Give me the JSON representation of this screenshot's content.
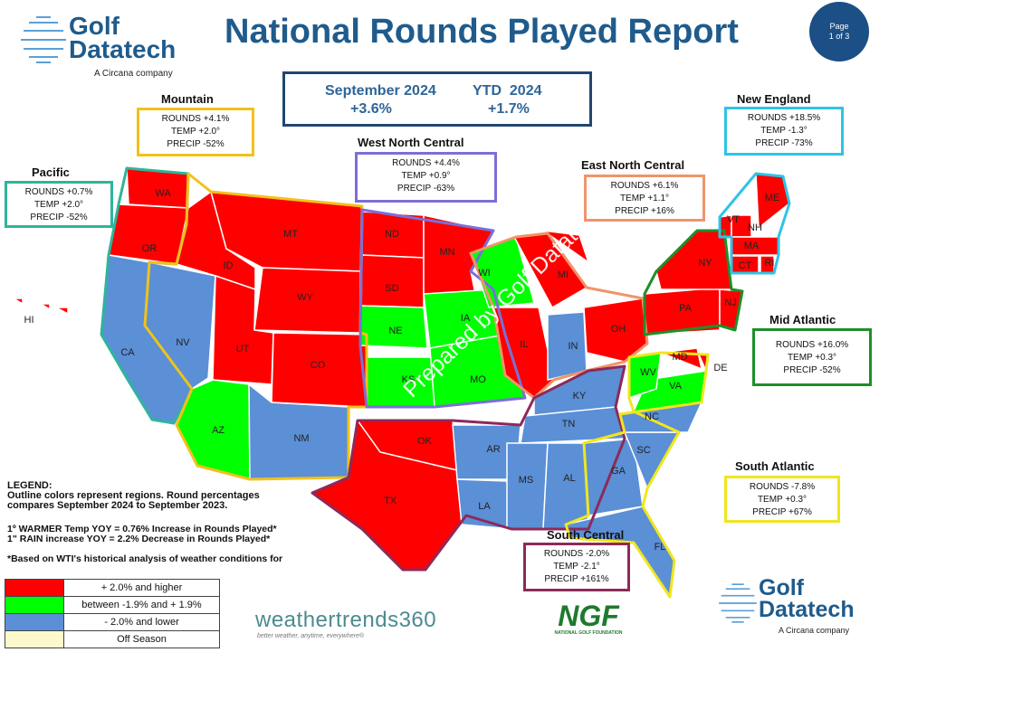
{
  "header": {
    "title": "National Rounds Played Report",
    "page_badge": {
      "line1": "Page",
      "line2": "1 of 3"
    }
  },
  "logo": {
    "line1": "Golf",
    "line2": "Datatech",
    "tagline": "A Circana company"
  },
  "summary": {
    "month_label": "September 2024",
    "month_value": "+3.6%",
    "ytd_label": "YTD  2024",
    "ytd_value": "+1.7%"
  },
  "regions": {
    "mountain": {
      "name": "Mountain",
      "rounds": "ROUNDS +4.1%",
      "temp": "TEMP +2.0°",
      "precip": "PRECIP -52%",
      "color": "#f2c11b"
    },
    "pacific": {
      "name": "Pacific",
      "rounds": "ROUNDS +0.7%",
      "temp": "TEMP +2.0°",
      "precip": "PRECIP -52%",
      "color": "#2eb59a"
    },
    "west_north_central": {
      "name": "West North Central",
      "rounds": "ROUNDS +4.4%",
      "temp": "TEMP +0.9°",
      "precip": "PRECIP -63%",
      "color": "#7b6fd8"
    },
    "east_north_central": {
      "name": "East North Central",
      "rounds": "ROUNDS +6.1%",
      "temp": "TEMP +1.1°",
      "precip": "PRECIP +16%",
      "color": "#f0946a"
    },
    "new_england": {
      "name": "New England",
      "rounds": "ROUNDS +18.5%",
      "temp": "TEMP -1.3°",
      "precip": "PRECIP -73%",
      "color": "#2ec4e6"
    },
    "mid_atlantic": {
      "name": "Mid Atlantic",
      "rounds": "ROUNDS +16.0%",
      "temp": "TEMP +0.3°",
      "precip": "PRECIP -52%",
      "color": "#1e8f2a"
    },
    "south_atlantic": {
      "name": "South Atlantic",
      "rounds": "ROUNDS -7.8%",
      "temp": "TEMP +0.3°",
      "precip": "PRECIP +67%",
      "color": "#f0e61e"
    },
    "south_central": {
      "name": "South Central",
      "rounds": "ROUNDS -2.0%",
      "temp": "TEMP -2.1°",
      "precip": "PRECIP +161%",
      "color": "#8c2a5a"
    }
  },
  "map": {
    "colors": {
      "up": "#ff0000",
      "flat": "#00ff00",
      "down": "#5b8fd6",
      "off": "#fdf9cc"
    },
    "states": [
      {
        "abbr": "WA",
        "status": "up"
      },
      {
        "abbr": "OR",
        "status": "up"
      },
      {
        "abbr": "CA",
        "status": "down"
      },
      {
        "abbr": "NV",
        "status": "down"
      },
      {
        "abbr": "ID",
        "status": "up"
      },
      {
        "abbr": "MT",
        "status": "up"
      },
      {
        "abbr": "WY",
        "status": "up"
      },
      {
        "abbr": "UT",
        "status": "up"
      },
      {
        "abbr": "CO",
        "status": "up"
      },
      {
        "abbr": "AZ",
        "status": "flat"
      },
      {
        "abbr": "NM",
        "status": "down"
      },
      {
        "abbr": "ND",
        "status": "up"
      },
      {
        "abbr": "SD",
        "status": "up"
      },
      {
        "abbr": "NE",
        "status": "flat"
      },
      {
        "abbr": "KS",
        "status": "flat"
      },
      {
        "abbr": "MN",
        "status": "up"
      },
      {
        "abbr": "IA",
        "status": "flat"
      },
      {
        "abbr": "MO",
        "status": "flat"
      },
      {
        "abbr": "WI",
        "status": "flat"
      },
      {
        "abbr": "IL",
        "status": "up"
      },
      {
        "abbr": "MI",
        "status": "up"
      },
      {
        "abbr": "IN",
        "status": "down"
      },
      {
        "abbr": "OH",
        "status": "up"
      },
      {
        "abbr": "KY",
        "status": "down"
      },
      {
        "abbr": "TN",
        "status": "down"
      },
      {
        "abbr": "OK",
        "status": "up"
      },
      {
        "abbr": "TX",
        "status": "up"
      },
      {
        "abbr": "AR",
        "status": "down"
      },
      {
        "abbr": "LA",
        "status": "down"
      },
      {
        "abbr": "MS",
        "status": "down"
      },
      {
        "abbr": "AL",
        "status": "down"
      },
      {
        "abbr": "GA",
        "status": "down"
      },
      {
        "abbr": "FL",
        "status": "down"
      },
      {
        "abbr": "SC",
        "status": "down"
      },
      {
        "abbr": "NC",
        "status": "down"
      },
      {
        "abbr": "VA",
        "status": "flat"
      },
      {
        "abbr": "WV",
        "status": "flat"
      },
      {
        "abbr": "MD",
        "status": "up"
      },
      {
        "abbr": "DE",
        "status": "up"
      },
      {
        "abbr": "PA",
        "status": "up"
      },
      {
        "abbr": "NJ",
        "status": "up"
      },
      {
        "abbr": "NY",
        "status": "up"
      },
      {
        "abbr": "VT",
        "status": "up"
      },
      {
        "abbr": "NH",
        "status": "up"
      },
      {
        "abbr": "ME",
        "status": "up"
      },
      {
        "abbr": "MA",
        "status": "up"
      },
      {
        "abbr": "CT",
        "status": "up"
      },
      {
        "abbr": "RI",
        "status": "up"
      },
      {
        "abbr": "HI",
        "status": "up"
      }
    ]
  },
  "legend": {
    "title": "LEGEND:",
    "line1": "Outline colors represent regions. Round percentages",
    "line2": "compares September 2024 to September 2023.",
    "rule1": "1º WARMER Temp YOY = 0.76% Increase in Rounds Played*",
    "rule2": "1\" RAIN increase YOY = 2.2% Decrease in Rounds Played*",
    "footnote": "*Based on WTI's historical analysis of weather conditions for",
    "items": [
      {
        "label": "+ 2.0% and higher",
        "color": "#ff0000"
      },
      {
        "label": "between -1.9% and + 1.9%",
        "color": "#00ff00"
      },
      {
        "label": "- 2.0% and lower",
        "color": "#5b8fd6"
      },
      {
        "label": "Off Season",
        "color": "#fdf9cc"
      }
    ]
  },
  "partners": {
    "weathertrends": "weathertrends360",
    "weathertrends_tagline": "better weather, anytime, everywhere®",
    "ngf": "NGF",
    "ngf_sub": "NATIONAL GOLF FOUNDATION"
  },
  "watermark": "Prepared by Golf Datatech"
}
